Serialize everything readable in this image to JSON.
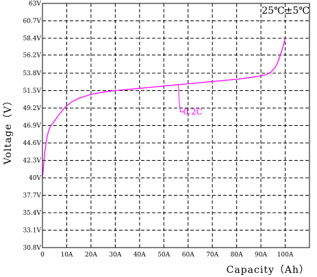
{
  "chart_data": {
    "type": "line",
    "title": "",
    "corner_note": "25℃±5℃",
    "xlabel": "Capacity（Ah）",
    "ylabel": "Voltage（V）",
    "xlim": [
      0,
      110
    ],
    "ylim": [
      30.8,
      63
    ],
    "x_ticks": [
      {
        "value": 0,
        "label": "0"
      },
      {
        "value": 10,
        "label": "10A"
      },
      {
        "value": 20,
        "label": "20A"
      },
      {
        "value": 30,
        "label": "30A"
      },
      {
        "value": 40,
        "label": "40A"
      },
      {
        "value": 50,
        "label": "50A"
      },
      {
        "value": 60,
        "label": "60A"
      },
      {
        "value": 70,
        "label": "70A"
      },
      {
        "value": 80,
        "label": "80A"
      },
      {
        "value": 90,
        "label": "90A"
      },
      {
        "value": 100,
        "label": "100A"
      }
    ],
    "y_ticks": [
      {
        "value": 63,
        "label": "63V"
      },
      {
        "value": 60.7,
        "label": "60.7V"
      },
      {
        "value": 58.4,
        "label": "58.4V"
      },
      {
        "value": 56.2,
        "label": "56.2V"
      },
      {
        "value": 53.8,
        "label": "53.8V"
      },
      {
        "value": 51.5,
        "label": "51.5V"
      },
      {
        "value": 49.2,
        "label": "49.2V"
      },
      {
        "value": 46.9,
        "label": "46.9V"
      },
      {
        "value": 44.6,
        "label": "44.6V"
      },
      {
        "value": 42.3,
        "label": "42.3V"
      },
      {
        "value": 40,
        "label": "40V"
      },
      {
        "value": 37.7,
        "label": "37.7V"
      },
      {
        "value": 35.4,
        "label": "35.4V"
      },
      {
        "value": 33.1,
        "label": "33.1V"
      },
      {
        "value": 30.8,
        "label": "30.8V"
      }
    ],
    "grid": true,
    "grid_style": "dashed",
    "series": [
      {
        "color": "#ff00ff",
        "x": [
          0,
          0.5,
          1,
          2,
          3,
          4,
          5,
          7,
          9,
          10,
          12,
          15,
          20,
          25,
          30,
          35,
          40,
          45,
          50,
          55,
          60,
          65,
          70,
          75,
          80,
          85,
          90,
          92,
          94,
          96,
          97,
          98,
          99,
          100
        ],
        "y": [
          40.0,
          41.8,
          43.5,
          45.6,
          46.6,
          47.1,
          47.5,
          48.4,
          49.2,
          49.5,
          50.0,
          50.5,
          51.0,
          51.3,
          51.5,
          51.65,
          51.8,
          51.95,
          52.1,
          52.25,
          52.4,
          52.55,
          52.7,
          52.85,
          53.0,
          53.2,
          53.45,
          53.6,
          53.9,
          54.6,
          55.3,
          56.2,
          57.2,
          58.4
        ]
      }
    ],
    "annotations": [
      {
        "text": "0.2C",
        "target_x": 56,
        "target_y": 52.3,
        "color": "#ff00ff"
      }
    ]
  }
}
